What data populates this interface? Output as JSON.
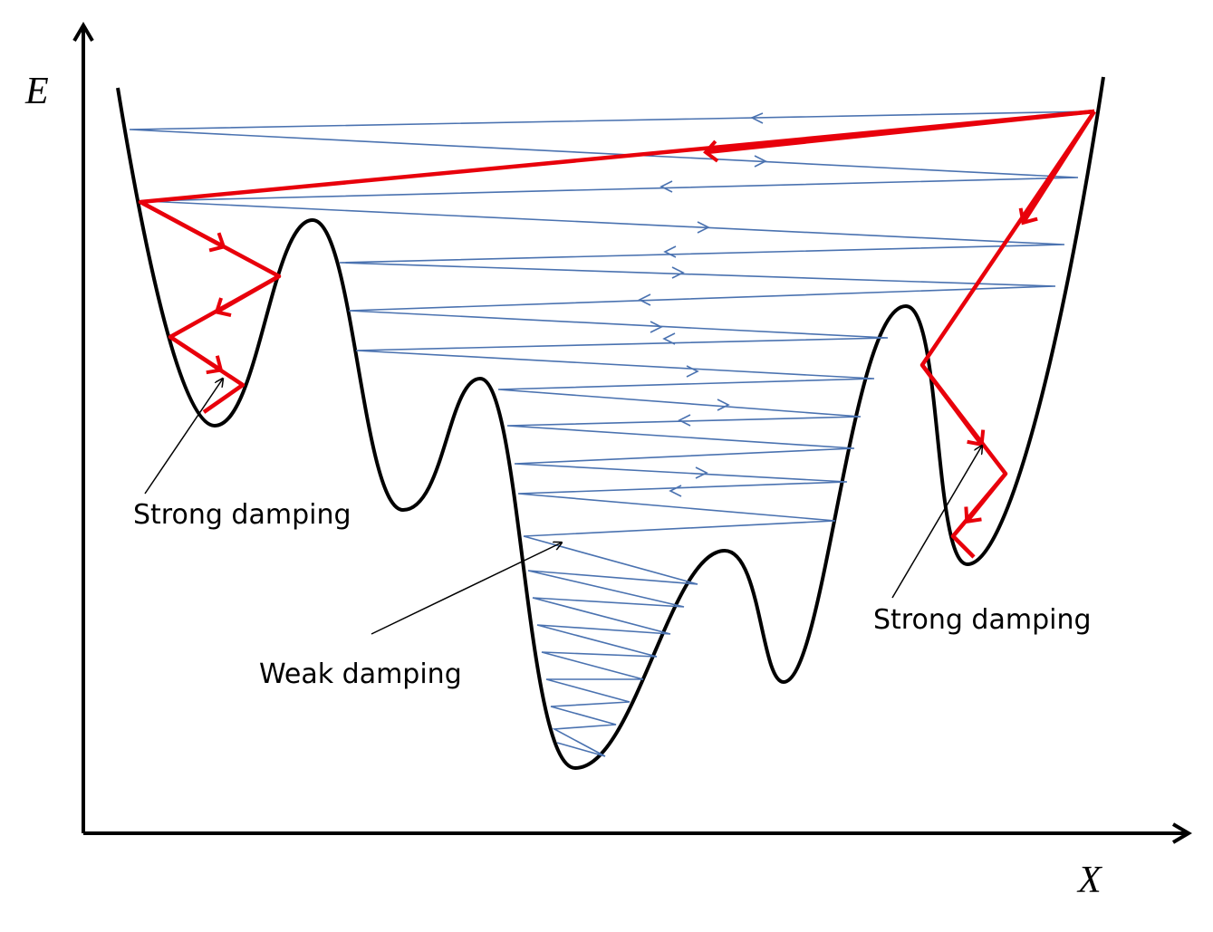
{
  "axes": {
    "y_label": "E",
    "x_label": "X"
  },
  "annotations": [
    "Strong damping",
    "Weak damping",
    "Strong damping"
  ]
}
